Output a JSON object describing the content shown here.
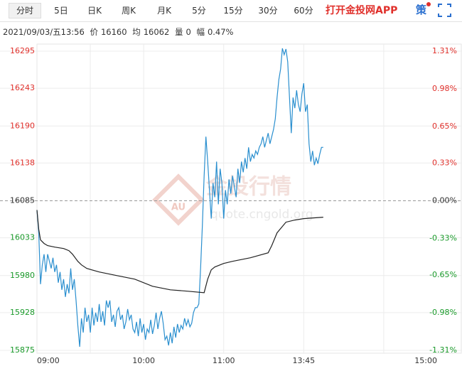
{
  "toolbar": {
    "tabs": [
      "分时",
      "5日",
      "日K",
      "周K",
      "月K",
      "5分",
      "15分",
      "30分",
      "60分"
    ],
    "app_link": "打开金投网APP",
    "strategy": "策"
  },
  "info": {
    "datetime": "2021/09/03/五13:56",
    "price_label": "价",
    "price": 16160,
    "avg_label": "均",
    "avg": 16062,
    "vol_label": "量",
    "vol": 0,
    "range_label": "幅",
    "range": "0.47%"
  },
  "watermark": {
    "logo": "AU",
    "title": "金投行情",
    "url": "quote.cngold.org"
  },
  "chart_data": {
    "type": "line",
    "xlim": [
      0,
      239
    ],
    "xticks": [
      {
        "value": 0,
        "label": "09:00"
      },
      {
        "value": 60,
        "label": "10:00"
      },
      {
        "value": 105,
        "label": "11:00"
      },
      {
        "value": 150,
        "label": "13:45"
      },
      {
        "value": 225,
        "label": "15:00"
      }
    ],
    "xgrid": [
      30,
      60,
      105,
      150,
      195
    ],
    "ylim": [
      15875,
      16295
    ],
    "yticks": [
      16295,
      16243,
      16190,
      16138,
      16085,
      16033,
      15980,
      15928,
      15875
    ],
    "y2lim": [
      -1.31,
      1.31
    ],
    "y2ticks": [
      {
        "value": 1.31,
        "label": "1.31%"
      },
      {
        "value": 0.98,
        "label": "0.98%"
      },
      {
        "value": 0.65,
        "label": "0.65%"
      },
      {
        "value": 0.33,
        "label": "0.33%"
      },
      {
        "value": 0,
        "label": "0.00%"
      },
      {
        "value": -0.33,
        "label": "-0.33%"
      },
      {
        "value": -0.65,
        "label": "-0.65%"
      },
      {
        "value": -0.98,
        "label": "-0.98%"
      },
      {
        "value": -1.31,
        "label": "-1.31%"
      }
    ],
    "baseline": 16085,
    "up_color": "#e0302b",
    "down_color": "#1a9a2a",
    "flat_color": "#333333",
    "grid": true,
    "series": [
      {
        "color": "#2a8fcf",
        "x": [
          0,
          1,
          2,
          3,
          4,
          5,
          6,
          7,
          8,
          9,
          10,
          11,
          12,
          13,
          14,
          15,
          16,
          17,
          18,
          19,
          20,
          21,
          22,
          23,
          24,
          25,
          26,
          27,
          28,
          29,
          30,
          31,
          32,
          33,
          34,
          35,
          36,
          37,
          38,
          39,
          40,
          41,
          42,
          43,
          44,
          45,
          46,
          47,
          48,
          49,
          50,
          51,
          52,
          53,
          54,
          55,
          56,
          57,
          58,
          59,
          60,
          61,
          62,
          63,
          64,
          65,
          66,
          67,
          68,
          69,
          70,
          71,
          72,
          73,
          74,
          75,
          76,
          77,
          78,
          79,
          80,
          81,
          82,
          83,
          84,
          85,
          86,
          87,
          88,
          89,
          90,
          91,
          92,
          93,
          94,
          95,
          96,
          97,
          98,
          99,
          100,
          101,
          102,
          103,
          104,
          105,
          106,
          107,
          108,
          109,
          110,
          111,
          112,
          113,
          114,
          115,
          116,
          117,
          118,
          119,
          120,
          121,
          122,
          123,
          124,
          125,
          126,
          127,
          128,
          129,
          130,
          131,
          132,
          133,
          134,
          135,
          136,
          137,
          138,
          139,
          140,
          141,
          142,
          143,
          144,
          145,
          146,
          147,
          148,
          149,
          150,
          151,
          152,
          153,
          154,
          155,
          156,
          157,
          158,
          159,
          160,
          161
        ],
        "values": [
          16072,
          16040,
          15968,
          15995,
          16010,
          15985,
          16010,
          16000,
          15990,
          16005,
          15985,
          15995,
          15970,
          15985,
          15960,
          15975,
          15950,
          15968,
          15955,
          15990,
          15960,
          15975,
          15945,
          15910,
          15880,
          15920,
          15900,
          15935,
          15915,
          15925,
          15900,
          15935,
          15910,
          15928,
          15915,
          15940,
          15915,
          15930,
          15910,
          15945,
          15935,
          15945,
          15915,
          15925,
          15908,
          15930,
          15935,
          15918,
          15925,
          15905,
          15915,
          15933,
          15918,
          15925,
          15905,
          15900,
          15915,
          15895,
          15920,
          15900,
          15912,
          15890,
          15905,
          15900,
          15918,
          15898,
          15910,
          15928,
          15905,
          15920,
          15930,
          15913,
          15890,
          15895,
          15882,
          15900,
          15885,
          15908,
          15893,
          15912,
          15900,
          15910,
          15905,
          15920,
          15910,
          15918,
          15908,
          15913,
          15928,
          15935,
          15935,
          15940,
          15990,
          16050,
          16120,
          16175,
          16140,
          16100,
          16060,
          16110,
          16090,
          16140,
          16080,
          16130,
          16110,
          16060,
          16100,
          16080,
          16115,
          16095,
          16120,
          16105,
          16090,
          16130,
          16110,
          16140,
          16125,
          16145,
          16130,
          16160,
          16140,
          16150,
          16145,
          16155,
          16150,
          16160,
          16165,
          16175,
          16160,
          16170,
          16180,
          16165,
          16175,
          16185,
          16200,
          16230,
          16255,
          16270,
          16299,
          16290,
          16298,
          16280,
          16230,
          16180,
          16230,
          16215,
          16240,
          16220,
          16210,
          16235,
          16250,
          16210,
          16220,
          16165,
          16140,
          16155,
          16135,
          16145,
          16137,
          16150,
          16160,
          16160
        ]
      },
      {
        "color": "#222222",
        "x": [
          0,
          1,
          2,
          4,
          6,
          10,
          15,
          18,
          20,
          23,
          25,
          28,
          35,
          45,
          55,
          65,
          75,
          85,
          94,
          96,
          98,
          100,
          105,
          110,
          120,
          130,
          132,
          135,
          140,
          145,
          150,
          161
        ],
        "values": [
          16072,
          16045,
          16030,
          16025,
          16022,
          16020,
          16018,
          16015,
          16010,
          16000,
          15995,
          15990,
          15985,
          15980,
          15975,
          15965,
          15960,
          15958,
          15956,
          15975,
          15988,
          15992,
          15997,
          16000,
          16005,
          16012,
          16022,
          16040,
          16055,
          16058,
          16060,
          16062
        ]
      }
    ]
  }
}
